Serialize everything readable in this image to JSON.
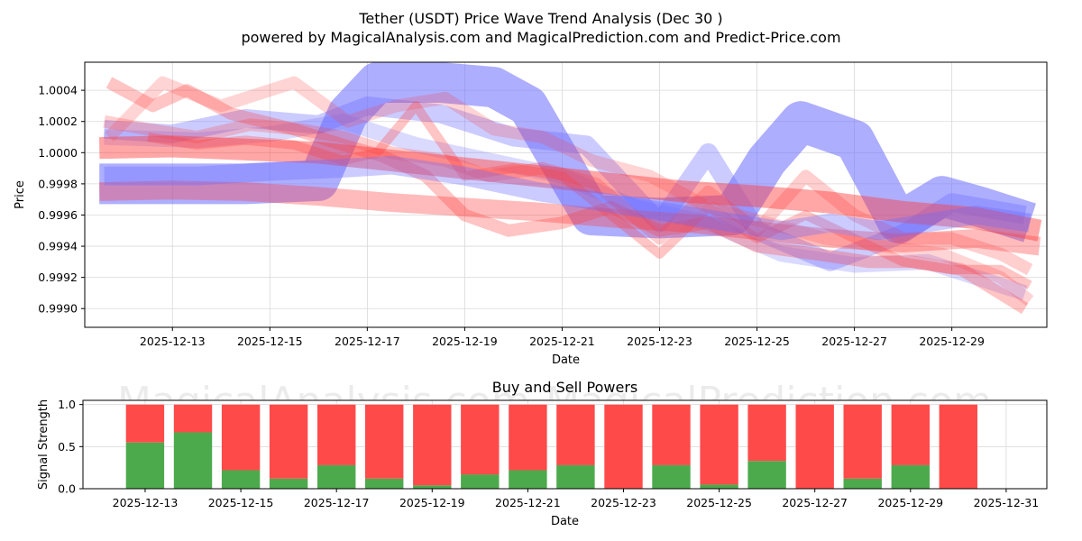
{
  "title_line1": "Tether (USDT) Price Wave Trend Analysis (Dec 30 )",
  "title_line2": "powered by MagicalAnalysis.com and MagicalPrediction.com and Predict-Price.com",
  "watermarks": [
    "MagicalAnalysis.com",
    "MagicalPrediction.com"
  ],
  "colors": {
    "buy": "#4caa4c",
    "sell": "#ff4a4a",
    "blue_wave": "#6b6bff",
    "red_wave": "#ff3b3b",
    "grid": "#d9d9d9"
  },
  "chart_data": [
    {
      "type": "area",
      "title": "",
      "xlabel": "Date",
      "ylabel": "Price",
      "xlim": [
        11.2,
        30.95
      ],
      "ylim": [
        0.99888,
        1.00058
      ],
      "x_ticks": [
        {
          "x": 13,
          "label": "2025-12-13"
        },
        {
          "x": 15,
          "label": "2025-12-15"
        },
        {
          "x": 17,
          "label": "2025-12-17"
        },
        {
          "x": 19,
          "label": "2025-12-19"
        },
        {
          "x": 21,
          "label": "2025-12-21"
        },
        {
          "x": 23,
          "label": "2025-12-23"
        },
        {
          "x": 25,
          "label": "2025-12-25"
        },
        {
          "x": 27,
          "label": "2025-12-27"
        },
        {
          "x": 29,
          "label": "2025-12-29"
        }
      ],
      "y_ticks": [
        {
          "y": 0.999,
          "label": "0.9990"
        },
        {
          "y": 0.9992,
          "label": "0.9992"
        },
        {
          "y": 0.9994,
          "label": "0.9994"
        },
        {
          "y": 0.9996,
          "label": "0.9996"
        },
        {
          "y": 0.9998,
          "label": "0.9998"
        },
        {
          "y": 1.0,
          "label": "1.0000"
        },
        {
          "y": 1.0002,
          "label": "1.0002"
        },
        {
          "y": 1.0004,
          "label": "1.0004"
        }
      ],
      "grid": true,
      "series": [
        {
          "name": "blue-wave-1",
          "color": "blue",
          "opacity": 0.55,
          "width": 0.00026,
          "x": [
            11.5,
            14.5,
            16.0,
            16.6,
            17.2,
            18.5,
            19.6,
            20.3,
            21.6,
            23.0,
            24.5,
            25.2,
            25.9,
            27.0,
            27.9,
            28.8,
            29.6,
            30.6
          ],
          "y": [
            0.9998,
            0.9998,
            0.99982,
            1.00025,
            1.00045,
            1.00045,
            1.00042,
            1.0003,
            0.9996,
            0.99958,
            0.9996,
            0.99995,
            1.0002,
            1.00008,
            0.99955,
            0.99972,
            0.99965,
            0.99955
          ]
        },
        {
          "name": "blue-wave-2",
          "color": "blue",
          "opacity": 0.35,
          "width": 0.00012,
          "x": [
            11.6,
            13.0,
            14.5,
            16.0,
            17.0,
            18.5,
            20.0,
            21.5,
            23.0,
            24.0,
            25.0,
            26.5,
            28.0,
            29.0,
            30.5
          ],
          "y": [
            1.00015,
            1.00012,
            1.00022,
            1.00018,
            1.0003,
            1.00025,
            1.0001,
            1.00005,
            0.99955,
            1.0,
            0.9995,
            0.9993,
            0.99948,
            0.99968,
            0.9996
          ]
        },
        {
          "name": "blue-wave-3",
          "color": "blue",
          "opacity": 0.25,
          "width": 0.0001,
          "x": [
            11.6,
            13.5,
            15.0,
            16.5,
            18.0,
            19.5,
            21.0,
            22.5,
            24.0,
            25.5,
            27.0,
            28.5,
            30.5
          ],
          "y": [
            1.0001,
            1.00008,
            1.00012,
            1.0002,
            1.00005,
            0.99995,
            0.99985,
            0.99965,
            0.99955,
            0.99935,
            0.99928,
            0.9993,
            0.9991
          ]
        },
        {
          "name": "red-wave-1",
          "color": "red",
          "opacity": 0.45,
          "width": 0.00014,
          "x": [
            11.5,
            13.0,
            14.5,
            16.0,
            17.5,
            19.0,
            20.5,
            22.0,
            23.5,
            25.0,
            26.5,
            28.0,
            29.5,
            30.8
          ],
          "y": [
            1.00003,
            1.00004,
            1.00002,
            1.0,
            0.99995,
            0.9999,
            0.99985,
            0.9998,
            0.99975,
            0.99972,
            0.99968,
            0.99962,
            0.99958,
            0.9995
          ]
        },
        {
          "name": "red-wave-2",
          "color": "red",
          "opacity": 0.35,
          "width": 0.00012,
          "x": [
            11.5,
            13.0,
            14.5,
            16.0,
            17.5,
            19.0,
            20.5,
            22.0,
            23.5,
            25.0,
            26.5,
            28.0,
            29.5,
            30.8
          ],
          "y": [
            0.99975,
            0.99976,
            0.99975,
            0.99972,
            0.99968,
            0.99965,
            0.99962,
            0.99958,
            0.99955,
            0.9995,
            0.99945,
            0.99942,
            0.99945,
            0.9994
          ]
        },
        {
          "name": "red-wave-3",
          "color": "red",
          "opacity": 0.3,
          "width": 8e-05,
          "x": [
            11.7,
            12.6,
            13.3,
            14.2,
            15.5,
            16.5,
            17.3,
            18.2,
            19.0,
            19.9,
            21.0,
            22.0,
            23.0,
            24.0,
            25.0,
            26.2,
            27.3,
            28.2,
            29.2,
            30.5
          ],
          "y": [
            1.00045,
            1.0003,
            1.0004,
            1.00025,
            1.00015,
            1.00005,
            0.99998,
            0.99985,
            0.9996,
            0.9995,
            0.99955,
            0.99965,
            0.9995,
            0.99955,
            0.9994,
            0.99935,
            0.9993,
            0.9993,
            0.99925,
            0.999
          ]
        },
        {
          "name": "red-wave-4",
          "color": "red",
          "opacity": 0.22,
          "width": 8e-05,
          "x": [
            11.7,
            12.8,
            14.0,
            15.5,
            16.6,
            17.6,
            18.6,
            19.6,
            20.6,
            21.6,
            22.8,
            24.0,
            25.2,
            26.4,
            27.6,
            28.8,
            30.0,
            30.6
          ],
          "y": [
            1.0001,
            1.00045,
            1.0003,
            1.00045,
            1.0002,
            1.0003,
            1.00035,
            1.00015,
            1.0001,
            0.99995,
            0.99985,
            0.99965,
            0.99955,
            0.99945,
            0.9994,
            0.99935,
            0.9992,
            0.99905
          ]
        },
        {
          "name": "red-wave-5",
          "color": "red",
          "opacity": 0.25,
          "width": 8e-05,
          "x": [
            11.6,
            12.5,
            13.5,
            14.6,
            15.6,
            16.5,
            17.5,
            18.6,
            19.5,
            20.6,
            21.7,
            23.0,
            24.0,
            25.0,
            26.0,
            27.0,
            28.0,
            29.0,
            30.0,
            30.6
          ],
          "y": [
            1.0002,
            1.00015,
            1.0001,
            1.00018,
            1.00015,
            1.0001,
            1.0,
            0.99995,
            0.99985,
            0.9999,
            0.9998,
            0.99945,
            0.99975,
            0.9995,
            0.99985,
            0.9996,
            0.99945,
            0.99945,
            0.99935,
            0.99925
          ]
        },
        {
          "name": "red-wave-6",
          "color": "red",
          "opacity": 0.3,
          "width": 6e-05,
          "x": [
            12.5,
            13.5,
            14.5,
            15.5,
            16.5,
            17.2,
            18.0,
            19.0,
            20.0,
            21.0,
            22.0,
            23.0,
            24.0,
            25.0,
            26.0,
            27.0,
            28.0,
            29.0,
            30.0,
            30.6
          ],
          "y": [
            1.0001,
            1.00005,
            1.00008,
            1.00005,
            0.99995,
            1.0,
            1.0003,
            0.99985,
            0.9999,
            0.99985,
            0.9996,
            0.99935,
            0.99965,
            0.99945,
            0.9996,
            0.99945,
            0.9993,
            0.99925,
            0.99925,
            0.99915
          ]
        },
        {
          "name": "purple-wave-1",
          "color": "blue",
          "opacity": 0.35,
          "width": 0.00012,
          "x": [
            11.6,
            13.5,
            15.0,
            16.5,
            17.5,
            19.0,
            20.5,
            21.5,
            22.5,
            23.5,
            24.5,
            25.5,
            26.5,
            27.5,
            28.5,
            29.5,
            30.6
          ],
          "y": [
            0.99985,
            0.99985,
            0.99988,
            0.9999,
            0.99992,
            0.99985,
            0.99975,
            0.9997,
            0.99965,
            0.9996,
            0.99955,
            0.9995,
            0.99955,
            0.9995,
            0.99955,
            0.9996,
            0.99955
          ]
        }
      ]
    },
    {
      "type": "bar",
      "title": "Buy and Sell Powers",
      "xlabel": "Date",
      "ylabel": "Signal Strength",
      "xlim": [
        11.7,
        31.85
      ],
      "ylim": [
        0,
        1.05
      ],
      "y_ticks": [
        {
          "y": 0.0,
          "label": "0.0"
        },
        {
          "y": 0.5,
          "label": "0.5"
        },
        {
          "y": 1.0,
          "label": "1.0"
        }
      ],
      "x_ticks": [
        {
          "x": 13,
          "label": "2025-12-13"
        },
        {
          "x": 15,
          "label": "2025-12-15"
        },
        {
          "x": 17,
          "label": "2025-12-17"
        },
        {
          "x": 19,
          "label": "2025-12-19"
        },
        {
          "x": 21,
          "label": "2025-12-21"
        },
        {
          "x": 23,
          "label": "2025-12-23"
        },
        {
          "x": 25,
          "label": "2025-12-25"
        },
        {
          "x": 27,
          "label": "2025-12-27"
        },
        {
          "x": 29,
          "label": "2025-12-29"
        },
        {
          "x": 31,
          "label": "2025-12-31"
        }
      ],
      "grid": true,
      "categories": [
        "2025-12-13",
        "2025-12-14",
        "2025-12-15",
        "2025-12-16",
        "2025-12-17",
        "2025-12-18",
        "2025-12-19",
        "2025-12-20",
        "2025-12-21",
        "2025-12-22",
        "2025-12-23",
        "2025-12-24",
        "2025-12-25",
        "2025-12-26",
        "2025-12-27",
        "2025-12-28",
        "2025-12-29",
        "2025-12-30"
      ],
      "x": [
        13,
        14,
        15,
        16,
        17,
        18,
        19,
        20,
        21,
        22,
        23,
        24,
        25,
        26,
        27,
        28,
        29,
        30
      ],
      "series": [
        {
          "name": "Buy",
          "values": [
            0.55,
            0.67,
            0.22,
            0.12,
            0.28,
            0.12,
            0.04,
            0.17,
            0.22,
            0.28,
            0.0,
            0.28,
            0.05,
            0.33,
            0.0,
            0.12,
            0.28,
            0.0
          ]
        },
        {
          "name": "Sell",
          "values": [
            0.45,
            0.33,
            0.78,
            0.88,
            0.72,
            0.88,
            0.96,
            0.83,
            0.78,
            0.72,
            1.0,
            0.72,
            0.95,
            0.67,
            1.0,
            0.88,
            0.72,
            1.0
          ]
        }
      ]
    }
  ]
}
